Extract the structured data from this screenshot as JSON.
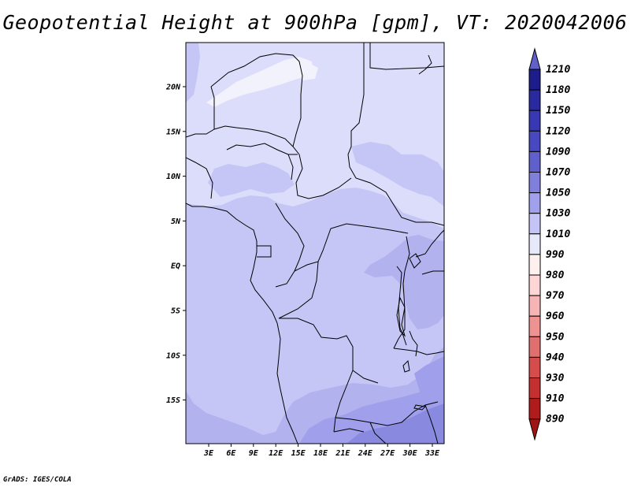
{
  "title": "Geopotential Height at 900hPa [gpm], VT: 2020042006",
  "credit": "GrADS: IGES/COLA",
  "map": {
    "lat_labels": [
      "20N",
      "15N",
      "10N",
      "5N",
      "EQ",
      "5S",
      "10S",
      "15S"
    ],
    "lon_labels": [
      "3E",
      "6E",
      "9E",
      "12E",
      "15E",
      "18E",
      "21E",
      "24E",
      "27E",
      "30E",
      "33E"
    ]
  },
  "colorbar": {
    "levels": [
      {
        "label": "1210",
        "color": "#6060c8"
      },
      {
        "label": "1180",
        "color": "#1c1c8a"
      },
      {
        "label": "1150",
        "color": "#2a2aa0"
      },
      {
        "label": "1120",
        "color": "#3838b4"
      },
      {
        "label": "1090",
        "color": "#4848c0"
      },
      {
        "label": "1070",
        "color": "#6060cc"
      },
      {
        "label": "1050",
        "color": "#8080dc"
      },
      {
        "label": "1030",
        "color": "#a0a0ec"
      },
      {
        "label": "1010",
        "color": "#c4c4f6"
      },
      {
        "label": "990",
        "color": "#e8e8fb"
      },
      {
        "label": "980",
        "color": "#fff0f0"
      },
      {
        "label": "970",
        "color": "#ffd6d6"
      },
      {
        "label": "960",
        "color": "#f7b4b4"
      },
      {
        "label": "950",
        "color": "#ee9292"
      },
      {
        "label": "940",
        "color": "#e07070"
      },
      {
        "label": "930",
        "color": "#d44c4c"
      },
      {
        "label": "910",
        "color": "#c43030"
      },
      {
        "label": "890",
        "color": "#b01c1c"
      }
    ],
    "bottom_cap_color": "#a01414"
  },
  "fields": {
    "c1010": "#dcdcfb",
    "c1030": "#c6c6f6",
    "c1050": "#b2b2ef",
    "c1070": "#9f9feb",
    "c1090": "#8989e0",
    "c990": "#f2f2fd"
  }
}
